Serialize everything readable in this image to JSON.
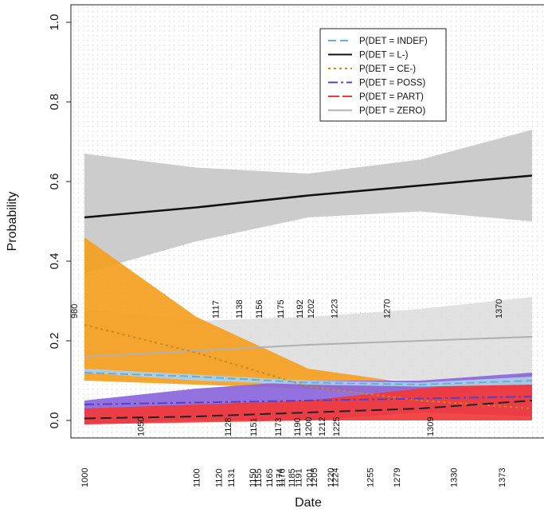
{
  "chart_data": {
    "type": "line",
    "xlabel": "Date",
    "ylabel": "Probability",
    "xlim": [
      960,
      1420
    ],
    "ylim": [
      0,
      1
    ],
    "y_ticks": [
      "0.0",
      "0.2",
      "0.4",
      "0.6",
      "0.8",
      "1.0"
    ],
    "grid": true,
    "legend_position": "top-right",
    "x": [
      1000,
      1100,
      1200,
      1300,
      1400
    ],
    "series": [
      {
        "name": "P(DET = INDEF)",
        "color": "#6aaed6",
        "dash": "10,5",
        "values": [
          0.12,
          0.11,
          0.095,
          0.09,
          0.1
        ],
        "lower": [
          0.12,
          0.1,
          0.09,
          0.085,
          0.09
        ],
        "upper": [
          0.13,
          0.115,
          0.1,
          0.095,
          0.11
        ],
        "band_color": "#a8d0ec"
      },
      {
        "name": "P(DET = L-)",
        "color": "#111111",
        "dash": "",
        "values": [
          0.51,
          0.535,
          0.565,
          0.59,
          0.615
        ],
        "lower": [
          0.37,
          0.45,
          0.51,
          0.525,
          0.5
        ],
        "upper": [
          0.67,
          0.635,
          0.62,
          0.655,
          0.73
        ],
        "band_color": "#c8c8c8"
      },
      {
        "name": "P(DET = CE-)",
        "color": "#c98a1e",
        "dash": "3,4",
        "values": [
          0.24,
          0.17,
          0.085,
          0.05,
          0.03
        ],
        "lower": [
          0.1,
          0.09,
          0.08,
          0.06,
          0.08
        ],
        "upper": [
          0.46,
          0.26,
          0.13,
          0.09,
          0.1
        ],
        "band_color": "#f5a020"
      },
      {
        "name": "P(DET = POSS)",
        "color": "#5b3fc0",
        "dash": "12,4,3,4",
        "values": [
          0.04,
          0.045,
          0.05,
          0.055,
          0.06
        ],
        "lower": [
          -0.01,
          0.0,
          0.0,
          0.02,
          0.01
        ],
        "upper": [
          0.05,
          0.08,
          0.1,
          0.1,
          0.12
        ],
        "band_color": "#8a66dd"
      },
      {
        "name": "P(DET = PART)",
        "color": "#222222",
        "dash": "14,6",
        "values": [
          0.005,
          0.01,
          0.02,
          0.03,
          0.05
        ],
        "lower": [
          -0.01,
          -0.005,
          0.0,
          0.0,
          0.0
        ],
        "upper": [
          0.03,
          0.04,
          0.05,
          0.08,
          0.11
        ],
        "band_color": "#f23838"
      },
      {
        "name": "P(DET = ZERO)",
        "color": "#b0b0b0",
        "dash": "",
        "values": [
          0.16,
          0.175,
          0.19,
          0.2,
          0.21
        ],
        "lower": [
          0.12,
          0.12,
          0.11,
          0.1,
          0.11
        ],
        "upper": [
          0.28,
          0.25,
          0.26,
          0.28,
          0.31
        ],
        "band_color": "#dcdcdc"
      }
    ],
    "date_labels": [
      {
        "text": "1000",
        "x": 1000,
        "row": "bottom"
      },
      {
        "text": "1050",
        "x": 1050,
        "row": "mid"
      },
      {
        "text": "1100",
        "x": 1100,
        "row": "bottom"
      },
      {
        "text": "1117",
        "x": 1117,
        "row": "top"
      },
      {
        "text": "1120",
        "x": 1120,
        "row": "bottom"
      },
      {
        "text": "1128",
        "x": 1128,
        "row": "mid"
      },
      {
        "text": "1131",
        "x": 1131,
        "row": "bottom"
      },
      {
        "text": "1138",
        "x": 1138,
        "row": "top"
      },
      {
        "text": "1150",
        "x": 1150,
        "row": "bottom"
      },
      {
        "text": "1151",
        "x": 1151,
        "row": "mid"
      },
      {
        "text": "1155",
        "x": 1155,
        "row": "bottom"
      },
      {
        "text": "1156",
        "x": 1156,
        "row": "top"
      },
      {
        "text": "1165",
        "x": 1165,
        "row": "bottom"
      },
      {
        "text": "1173",
        "x": 1173,
        "row": "mid"
      },
      {
        "text": "1174",
        "x": 1174,
        "row": "bottom"
      },
      {
        "text": "1175",
        "x": 1175,
        "row": "top"
      },
      {
        "text": "1176",
        "x": 1176,
        "row": "bottom"
      },
      {
        "text": "1185",
        "x": 1185,
        "row": "bottom"
      },
      {
        "text": "1190",
        "x": 1190,
        "row": "mid"
      },
      {
        "text": "1191",
        "x": 1191,
        "row": "bottom"
      },
      {
        "text": "1192",
        "x": 1192,
        "row": "top"
      },
      {
        "text": "1200",
        "x": 1200,
        "row": "mid"
      },
      {
        "text": "1201",
        "x": 1201,
        "row": "bottom"
      },
      {
        "text": "1202",
        "x": 1202,
        "row": "top"
      },
      {
        "text": "1205",
        "x": 1205,
        "row": "bottom"
      },
      {
        "text": "1212",
        "x": 1212,
        "row": "mid"
      },
      {
        "text": "1220",
        "x": 1220,
        "row": "bottom"
      },
      {
        "text": "1223",
        "x": 1223,
        "row": "top"
      },
      {
        "text": "1224",
        "x": 1224,
        "row": "bottom"
      },
      {
        "text": "1225",
        "x": 1225,
        "row": "mid"
      },
      {
        "text": "1255",
        "x": 1255,
        "row": "bottom"
      },
      {
        "text": "1270",
        "x": 1270,
        "row": "top"
      },
      {
        "text": "1279",
        "x": 1279,
        "row": "bottom"
      },
      {
        "text": "1309",
        "x": 1309,
        "row": "mid"
      },
      {
        "text": "1330",
        "x": 1330,
        "row": "bottom"
      },
      {
        "text": "1370",
        "x": 1370,
        "row": "top"
      },
      {
        "text": "1373",
        "x": 1373,
        "row": "bottom"
      },
      {
        "text": "980",
        "x": 980,
        "row": "top"
      }
    ]
  }
}
